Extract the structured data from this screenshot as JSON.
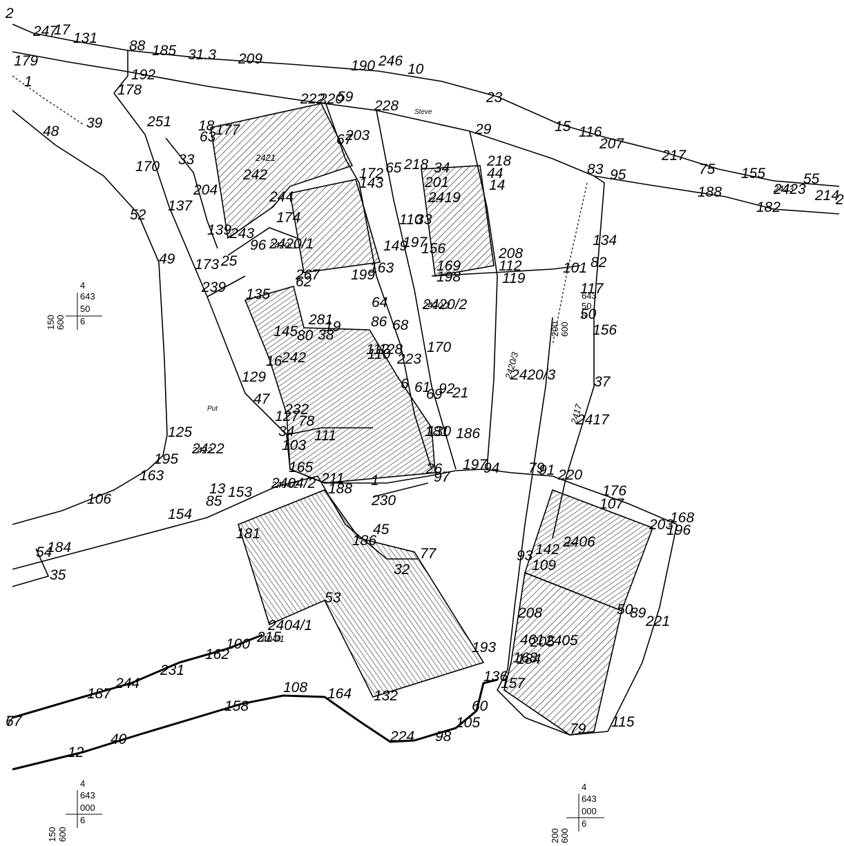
{
  "map": {
    "corner_label": "2",
    "place_labels": {
      "road": "Steve",
      "well": "Put"
    },
    "parcels": [
      "2421",
      "2420/1",
      "2420/2",
      "2420/3",
      "2419",
      "2417",
      "2423",
      "2422",
      "2404/2",
      "2404/1",
      "2406"
    ],
    "grid_refs": [
      {
        "a": "4",
        "b": "643",
        "c": "50",
        "d": "6",
        "e": "600",
        "f": "150"
      },
      {
        "a": "4",
        "b": "643",
        "c": "50",
        "d": "6",
        "e": "600",
        "f": "200"
      },
      {
        "a": "4",
        "b": "643",
        "c": "000",
        "d": "6",
        "e": "600",
        "f": "150"
      },
      {
        "a": "4",
        "b": "643",
        "c": "000",
        "d": "6",
        "e": "600",
        "f": "200"
      }
    ],
    "point_labels": [
      "247",
      "17",
      "131",
      "88",
      "185",
      "31.3",
      "209",
      "190",
      "246",
      "10",
      "179",
      "192",
      "178",
      "222",
      "220",
      "59",
      "228",
      "23",
      "39",
      "251",
      "18",
      "177",
      "63",
      "203",
      "67",
      "29",
      "15",
      "116",
      "207",
      "217",
      "75",
      "155",
      "55",
      "48",
      "170",
      "33",
      "65",
      "218",
      "34",
      "218",
      "44",
      "14",
      "83",
      "95",
      "204",
      "242",
      "244",
      "172",
      "143",
      "201",
      "2423",
      "214",
      "23",
      "137",
      "52",
      "110",
      "33",
      "2419",
      "188",
      "182",
      "139",
      "243",
      "174",
      "197",
      "156",
      "134",
      "96",
      "2420/1",
      "149",
      "169",
      "208",
      "112",
      "49",
      "173",
      "25",
      "267",
      "62",
      "199",
      "163",
      "198",
      "119",
      "101",
      "82",
      "239",
      "135",
      "64",
      "2420/2",
      "117",
      "50",
      "281",
      "19",
      "86",
      "68",
      "110",
      "170",
      "156",
      "145",
      "80",
      "38",
      "112",
      "128",
      "223",
      "16",
      "242",
      "129",
      "6",
      "61",
      "69",
      "92",
      "21",
      "37",
      "47",
      "127",
      "232",
      "78",
      "2417",
      "34",
      "111",
      "130",
      "181",
      "186",
      "2420/3",
      "125",
      "103",
      "195",
      "2422",
      "165",
      "163",
      "26",
      "197",
      "94",
      "79",
      "91",
      "220",
      "106",
      "13",
      "153",
      "2404/2",
      "211",
      "188",
      "1",
      "230",
      "97",
      "176",
      "107",
      "203",
      "168",
      "196",
      "154",
      "85",
      "184",
      "54",
      "181",
      "186",
      "45",
      "77",
      "93",
      "142",
      "2406",
      "109",
      "35",
      "32",
      "53",
      "50",
      "89",
      "221",
      "208",
      "2405",
      "2404/1",
      "215",
      "100",
      "461",
      "162",
      "205",
      "231",
      "193",
      "163",
      "184",
      "244",
      "187",
      "136",
      "157",
      "108",
      "164",
      "158",
      "67",
      "60",
      "132",
      "105",
      "115",
      "79",
      "40",
      "12",
      "98",
      "224",
      "7",
      "1"
    ]
  }
}
